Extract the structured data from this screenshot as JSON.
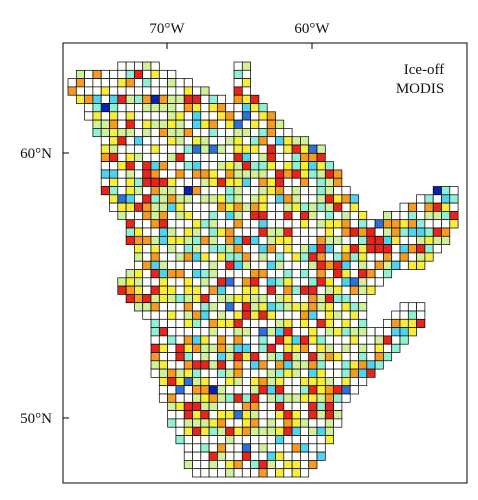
{
  "map": {
    "label_line1": "Ice-off",
    "label_line2": "MODIS",
    "lon_ticks": [
      {
        "label": "70°W",
        "lon": -70
      },
      {
        "label": "60°W",
        "lon": -60
      }
    ],
    "lat_ticks": [
      {
        "label": "60°N",
        "lat": 60
      },
      {
        "label": "50°N",
        "lat": 50
      }
    ],
    "extent": {
      "lon_min": -77.5,
      "lon_max": -57.5,
      "lat_min": 47.0,
      "lat_max": 64.2
    },
    "palette": {
      "none": "#ffffff",
      "red": "#e8251b",
      "orange": "#f79a22",
      "yellow": "#f8ee3a",
      "lightgreen": "#d2f09a",
      "aqua": "#8ff0d6",
      "cyan": "#4fd3ee",
      "blue": "#2f6fd8",
      "darkblue": "#0a22b4"
    },
    "grid_color": "#000000"
  }
}
